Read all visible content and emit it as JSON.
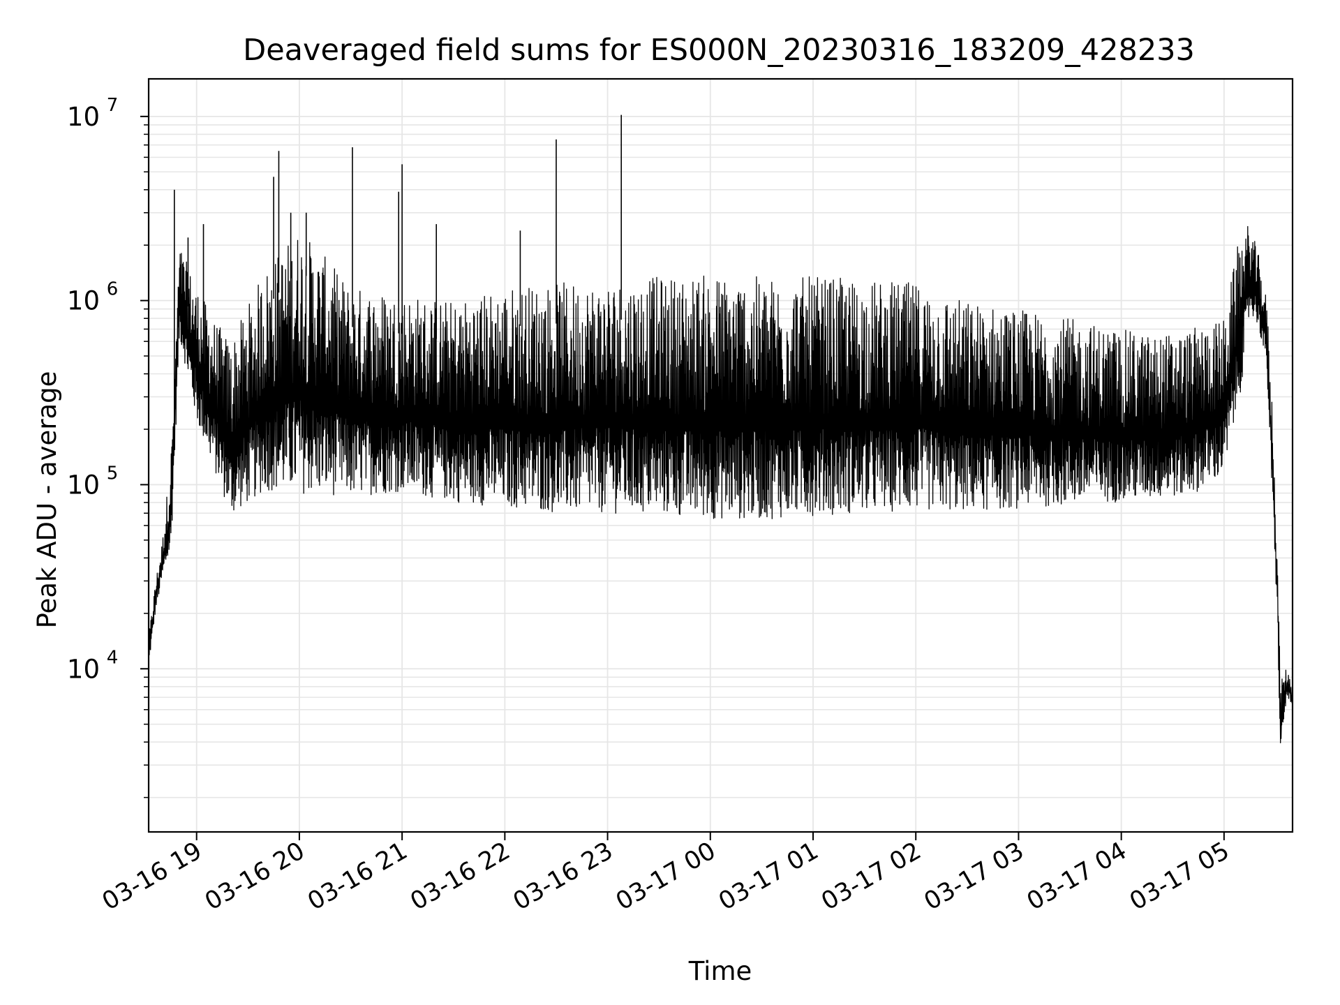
{
  "chart_data": {
    "type": "line",
    "title": "Deaveraged field sums for ES000N_20230316_183209_428233",
    "xlabel": "Time",
    "ylabel": "Peak ADU - average",
    "yscale": "log",
    "ylim": [
      1300,
      16000000
    ],
    "xlim": [
      "03-16 18:32",
      "03-17 05:40"
    ],
    "grid": true,
    "line_color": "#000000",
    "grid_color": "#e6e6e6",
    "x_ticks": [
      "03-16 19",
      "03-16 20",
      "03-16 21",
      "03-16 22",
      "03-16 23",
      "03-17 00",
      "03-17 01",
      "03-17 02",
      "03-17 03",
      "03-17 04",
      "03-17 05"
    ],
    "y_ticks": [
      {
        "base": "10",
        "exp": "4",
        "value": 10000
      },
      {
        "base": "10",
        "exp": "5",
        "value": 100000
      },
      {
        "base": "10",
        "exp": "6",
        "value": 1000000
      },
      {
        "base": "10",
        "exp": "7",
        "value": 10000000
      }
    ],
    "envelope": {
      "time": [
        "03-16 18:32",
        "03-16 18:36",
        "03-16 18:40",
        "03-16 18:45",
        "03-16 18:50",
        "03-16 19:00",
        "03-16 19:10",
        "03-16 19:20",
        "03-16 19:40",
        "03-16 20:00",
        "03-16 20:30",
        "03-16 21:00",
        "03-16 21:30",
        "03-16 22:00",
        "03-16 22:30",
        "03-16 23:00",
        "03-16 23:30",
        "03-17 00:00",
        "03-17 00:30",
        "03-17 01:00",
        "03-17 01:30",
        "03-17 02:00",
        "03-17 02:30",
        "03-17 03:00",
        "03-17 03:30",
        "03-17 04:00",
        "03-17 04:20",
        "03-17 04:40",
        "03-17 05:00",
        "03-17 05:10",
        "03-17 05:15",
        "03-17 05:20",
        "03-17 05:25",
        "03-17 05:28",
        "03-17 05:31",
        "03-17 05:33",
        "03-17 05:35",
        "03-17 05:37",
        "03-17 05:40"
      ],
      "low": [
        10000,
        20000,
        30000,
        40000,
        600000,
        200000,
        110000,
        60000,
        80000,
        75000,
        75000,
        80000,
        70000,
        65000,
        60000,
        60000,
        58000,
        55000,
        55000,
        58000,
        60000,
        62000,
        62000,
        65000,
        68000,
        72000,
        75000,
        78000,
        100000,
        300000,
        800000,
        700000,
        400000,
        80000,
        20000,
        3000,
        5000,
        7000,
        6000
      ],
      "high": [
        15000,
        30000,
        50000,
        150000,
        2000000,
        1200000,
        800000,
        600000,
        1500000,
        2500000,
        1200000,
        1100000,
        1000000,
        1200000,
        1250000,
        1300000,
        1350000,
        1400000,
        1350000,
        1350000,
        1300000,
        1250000,
        1000000,
        900000,
        800000,
        700000,
        650000,
        700000,
        800000,
        2500000,
        2600000,
        1800000,
        1000000,
        300000,
        50000,
        8000,
        10000,
        10000,
        8000
      ]
    },
    "spikes": [
      {
        "time": "03-16 18:47",
        "value": 4000000
      },
      {
        "time": "03-16 18:55",
        "value": 2200000
      },
      {
        "time": "03-16 19:04",
        "value": 2600000
      },
      {
        "time": "03-16 19:45",
        "value": 4700000
      },
      {
        "time": "03-16 19:48",
        "value": 6500000
      },
      {
        "time": "03-16 19:55",
        "value": 3000000
      },
      {
        "time": "03-16 20:04",
        "value": 3000000
      },
      {
        "time": "03-16 20:31",
        "value": 6800000
      },
      {
        "time": "03-16 20:58",
        "value": 3900000
      },
      {
        "time": "03-16 21:00",
        "value": 5500000
      },
      {
        "time": "03-16 21:20",
        "value": 2600000
      },
      {
        "time": "03-16 22:09",
        "value": 2400000
      },
      {
        "time": "03-16 22:30",
        "value": 7500000
      },
      {
        "time": "03-16 23:08",
        "value": 10200000
      }
    ]
  }
}
